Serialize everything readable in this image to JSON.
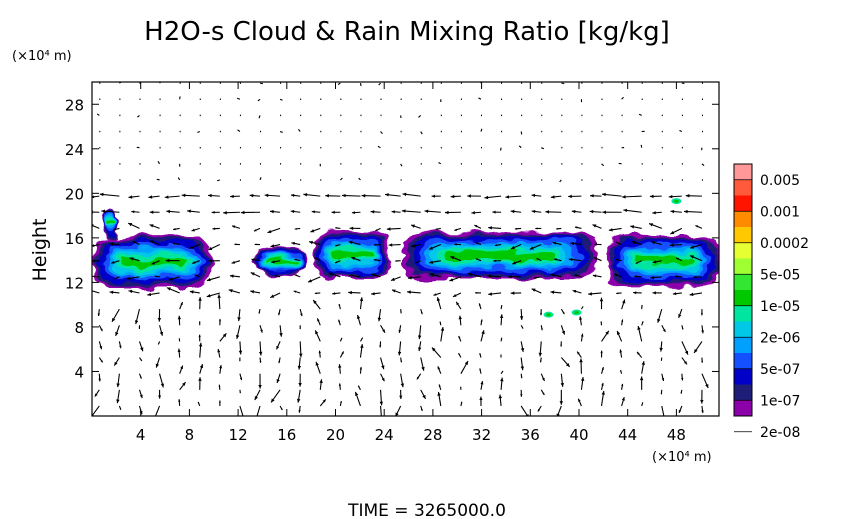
{
  "chart_data": {
    "type": "heatmap",
    "title": "H2O-s Cloud & Rain Mixing Ratio [kg/kg]",
    "ylabel": "Height",
    "y_unit": "(×10⁴ m)",
    "x_unit": "(×10⁴ m)",
    "xlim": [
      0,
      51.5
    ],
    "ylim": [
      0,
      30
    ],
    "x_ticks": [
      "4",
      "8",
      "12",
      "16",
      "20",
      "24",
      "28",
      "32",
      "36",
      "40",
      "44",
      "48"
    ],
    "y_ticks": [
      "4",
      "8",
      "12",
      "16",
      "20",
      "24",
      "28"
    ],
    "footer": "TIME = 3265000.0",
    "legend": {
      "placement": "right",
      "labels": [
        "0.005",
        "0.001",
        "0.0002",
        "5e-05",
        "1e-05",
        "2e-06",
        "5e-07",
        "1e-07",
        "2e-08"
      ],
      "colors": [
        "#ff9999",
        "#ff5a3c",
        "#ff1400",
        "#ff8c00",
        "#ffc800",
        "#e6ff32",
        "#a0ff32",
        "#32e632",
        "#00c800",
        "#00e6a0",
        "#00c8e6",
        "#00a0ff",
        "#1450ff",
        "#0000c8",
        "#1e1e78",
        "#8c00aa"
      ]
    },
    "cloud_layer_height_range": [
      11.5,
      17
    ],
    "cloud_segments": [
      {
        "x": [
          0.2,
          9.8
        ],
        "bottom": 11.5,
        "top": 16.2
      },
      {
        "x": [
          0.8,
          2.2
        ],
        "bottom": 16,
        "top": 18.8
      },
      {
        "x": [
          13.5,
          17.5
        ],
        "bottom": 12.6,
        "top": 15.2
      },
      {
        "x": [
          18.2,
          24.5
        ],
        "bottom": 12.3,
        "top": 16.6
      },
      {
        "x": [
          25.5,
          41.5
        ],
        "bottom": 12.3,
        "top": 16.5
      },
      {
        "x": [
          42.5,
          51.5
        ],
        "bottom": 11.6,
        "top": 16.3
      }
    ],
    "small_features": [
      {
        "x": 37.5,
        "y": 9.1
      },
      {
        "x": 39.8,
        "y": 9.3
      },
      {
        "x": 48.0,
        "y": 19.3
      }
    ],
    "vector_field": "wind vectors over the full domain, strongest below 10 and around 19-20 height"
  }
}
